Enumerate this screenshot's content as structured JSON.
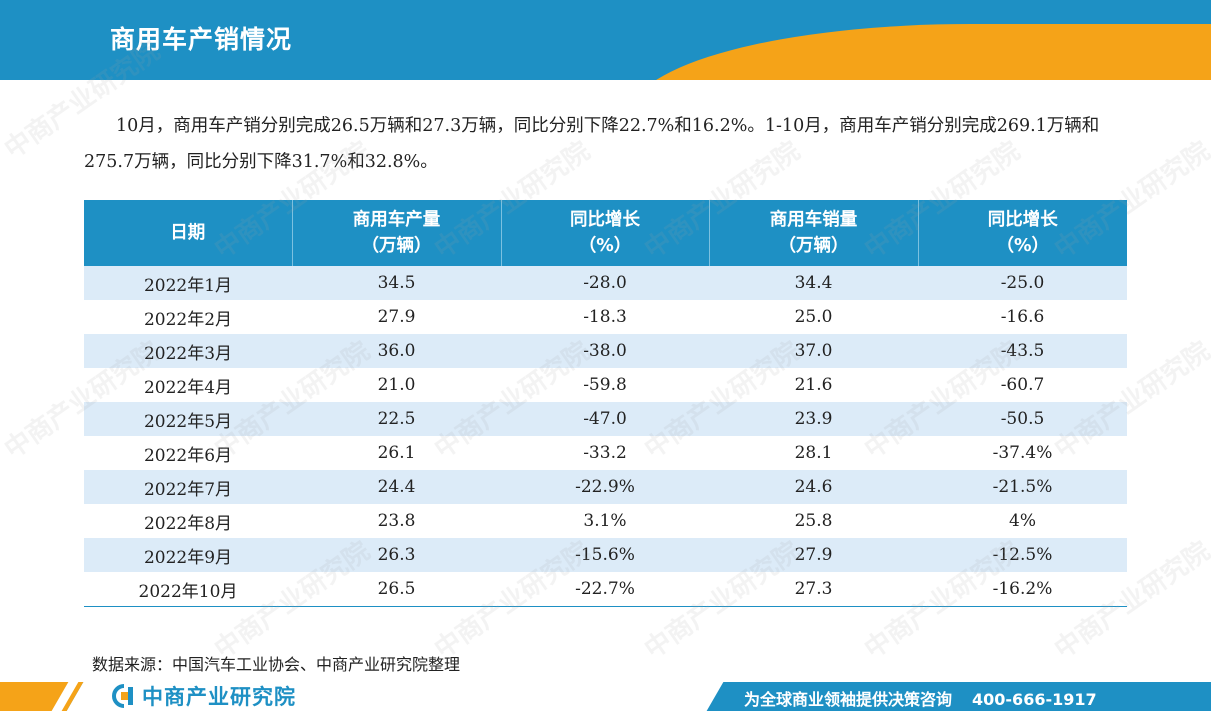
{
  "header": {
    "title": "商用车产销情况"
  },
  "intro": "10月，商用车产销分别完成26.5万辆和27.3万辆，同比分别下降22.7%和16.2%。1-10月，商用车产销分别完成269.1万辆和275.7万辆，同比分别下降31.7%和32.8%。",
  "table": {
    "headers": [
      {
        "line1": "日期",
        "line2": ""
      },
      {
        "line1": "商用车产量",
        "line2": "（万辆）"
      },
      {
        "line1": "同比增长",
        "line2": "（%）"
      },
      {
        "line1": "商用车销量",
        "line2": "（万辆）"
      },
      {
        "line1": "同比增长",
        "line2": "（%）"
      }
    ],
    "rows": [
      [
        "2022年1月",
        "34.5",
        "-28.0",
        "34.4",
        "-25.0"
      ],
      [
        "2022年2月",
        "27.9",
        "-18.3",
        "25.0",
        "-16.6"
      ],
      [
        "2022年3月",
        "36.0",
        "-38.0",
        "37.0",
        "-43.5"
      ],
      [
        "2022年4月",
        "21.0",
        "-59.8",
        "21.6",
        "-60.7"
      ],
      [
        "2022年5月",
        "22.5",
        "-47.0",
        "23.9",
        "-50.5"
      ],
      [
        "2022年6月",
        "26.1",
        "-33.2",
        "28.1",
        "-37.4%"
      ],
      [
        "2022年7月",
        "24.4",
        "-22.9%",
        "24.6",
        "-21.5%"
      ],
      [
        "2022年8月",
        "23.8",
        "3.1%",
        "25.8",
        "4%"
      ],
      [
        "2022年9月",
        "26.3",
        "-15.6%",
        "27.9",
        "-12.5%"
      ],
      [
        "2022年10月",
        "26.5",
        "-22.7%",
        "27.3",
        "-16.2%"
      ]
    ]
  },
  "source": "数据来源：中国汽车工业协会、中商产业研究院整理",
  "footer": {
    "brand": "中商产业研究院",
    "slogan": "为全球商业领袖提供决策咨询",
    "phone": "400-666-1917",
    "logo_icon": "zhongshang-logo-icon"
  },
  "watermark": {
    "text": "中商产业研究院"
  },
  "colors": {
    "primary_blue": "#1e90c4",
    "accent_orange": "#f5a318",
    "row_stripe": "#dcebf8"
  }
}
